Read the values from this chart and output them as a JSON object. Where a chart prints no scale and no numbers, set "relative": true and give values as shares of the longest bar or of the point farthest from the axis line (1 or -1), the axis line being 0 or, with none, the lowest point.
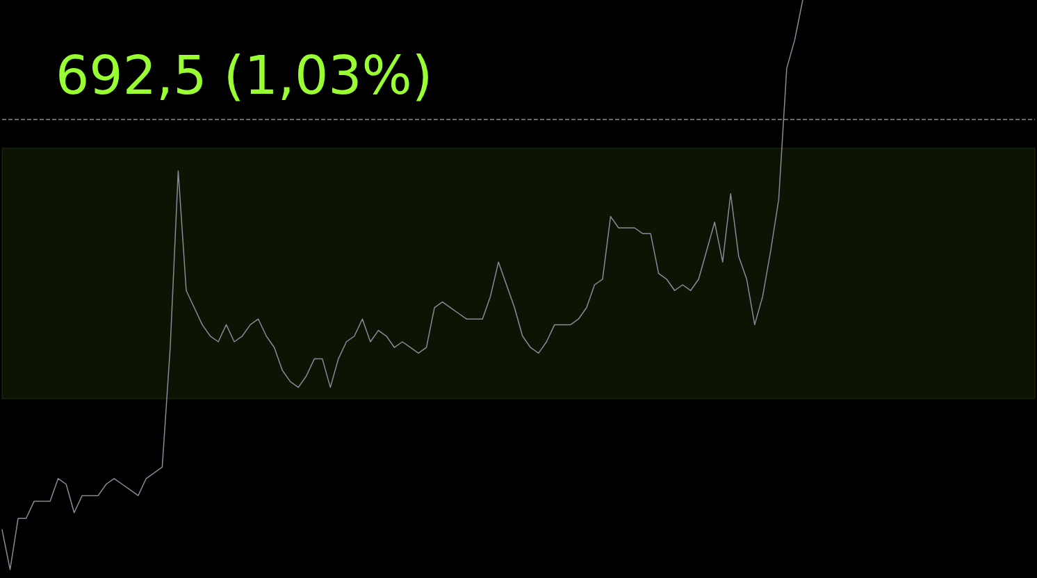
{
  "chart_data": {
    "type": "line",
    "relative": true,
    "marker": "none",
    "line_style": "solid",
    "categories": [
      null,
      null,
      null,
      null,
      null,
      null,
      null,
      null,
      null,
      null,
      null,
      null,
      null,
      null,
      null,
      null,
      null,
      null,
      null,
      null,
      null,
      null,
      null,
      null,
      null,
      null,
      null,
      null,
      null,
      null,
      null,
      null,
      null,
      null,
      null,
      null,
      null,
      null,
      null,
      null,
      null,
      null,
      null,
      null,
      null,
      null,
      null,
      null,
      null,
      null,
      null,
      null,
      null,
      null,
      null,
      null,
      null,
      null,
      null,
      null,
      null,
      null,
      null,
      null,
      null,
      null,
      null,
      null,
      null,
      null,
      null,
      null,
      null,
      null,
      null,
      null,
      null,
      null,
      null,
      null,
      null,
      null,
      null,
      null,
      null,
      null,
      null,
      null,
      null,
      null,
      null,
      null,
      null,
      null,
      null,
      null,
      null,
      null,
      null,
      null,
      null,
      null,
      null,
      null,
      null,
      null,
      null,
      null,
      null,
      null,
      null,
      null,
      null,
      null,
      null,
      null,
      null,
      null,
      null,
      null,
      null,
      null,
      null,
      null,
      null,
      null,
      null,
      null,
      null,
      null
    ],
    "series": [
      {
        "color": "#8a8a99",
        "values": [
          0.07,
          0,
          0.09,
          0.09,
          0.12,
          0.12,
          0.12,
          0.16,
          0.15,
          0.1,
          0.13,
          0.13,
          0.13,
          0.15,
          0.16,
          0.15,
          0.14,
          0.13,
          0.16,
          0.17,
          0.18,
          0.39,
          0.7,
          0.49,
          0.46,
          0.43,
          0.41,
          0.4,
          0.43,
          0.4,
          0.41,
          0.43,
          0.44,
          0.41,
          0.39,
          0.35,
          0.33,
          0.32,
          0.34,
          0.37,
          0.37,
          0.32,
          0.37,
          0.4,
          0.41,
          0.44,
          0.4,
          0.42,
          0.41,
          0.39,
          0.4,
          0.39,
          0.38,
          0.39,
          0.46,
          0.47,
          0.46,
          0.45,
          0.44,
          0.44,
          0.44,
          0.48,
          0.54,
          0.5,
          0.46,
          0.41,
          0.39,
          0.38,
          0.4,
          0.43,
          0.43,
          0.43,
          0.44,
          0.46,
          0.5,
          0.51,
          0.62,
          0.6,
          0.6,
          0.6,
          0.59,
          0.59,
          0.52,
          0.51,
          0.49,
          0.5,
          0.49,
          0.51,
          0.56,
          0.61,
          0.54,
          0.66,
          0.55,
          0.51,
          0.43,
          0.48,
          0.56,
          0.65,
          0.88,
          0.93,
          1,
          null,
          null,
          null,
          null,
          null,
          null,
          null,
          null,
          null,
          null,
          null,
          null,
          null,
          null,
          null,
          null,
          null,
          null,
          null,
          null,
          null,
          null,
          null,
          null,
          null,
          null,
          null,
          null,
          null
        ]
      }
    ],
    "ref_lines": [
      {
        "axis": "y",
        "value": 0.79,
        "color": "#8c8c8c",
        "line_style": "dashed"
      }
    ],
    "bands": [
      {
        "axis": "y",
        "from": 0.3,
        "to": 0.74,
        "color": "#99ff33"
      }
    ],
    "annotations": [
      "692,5 (1,03%)"
    ]
  }
}
